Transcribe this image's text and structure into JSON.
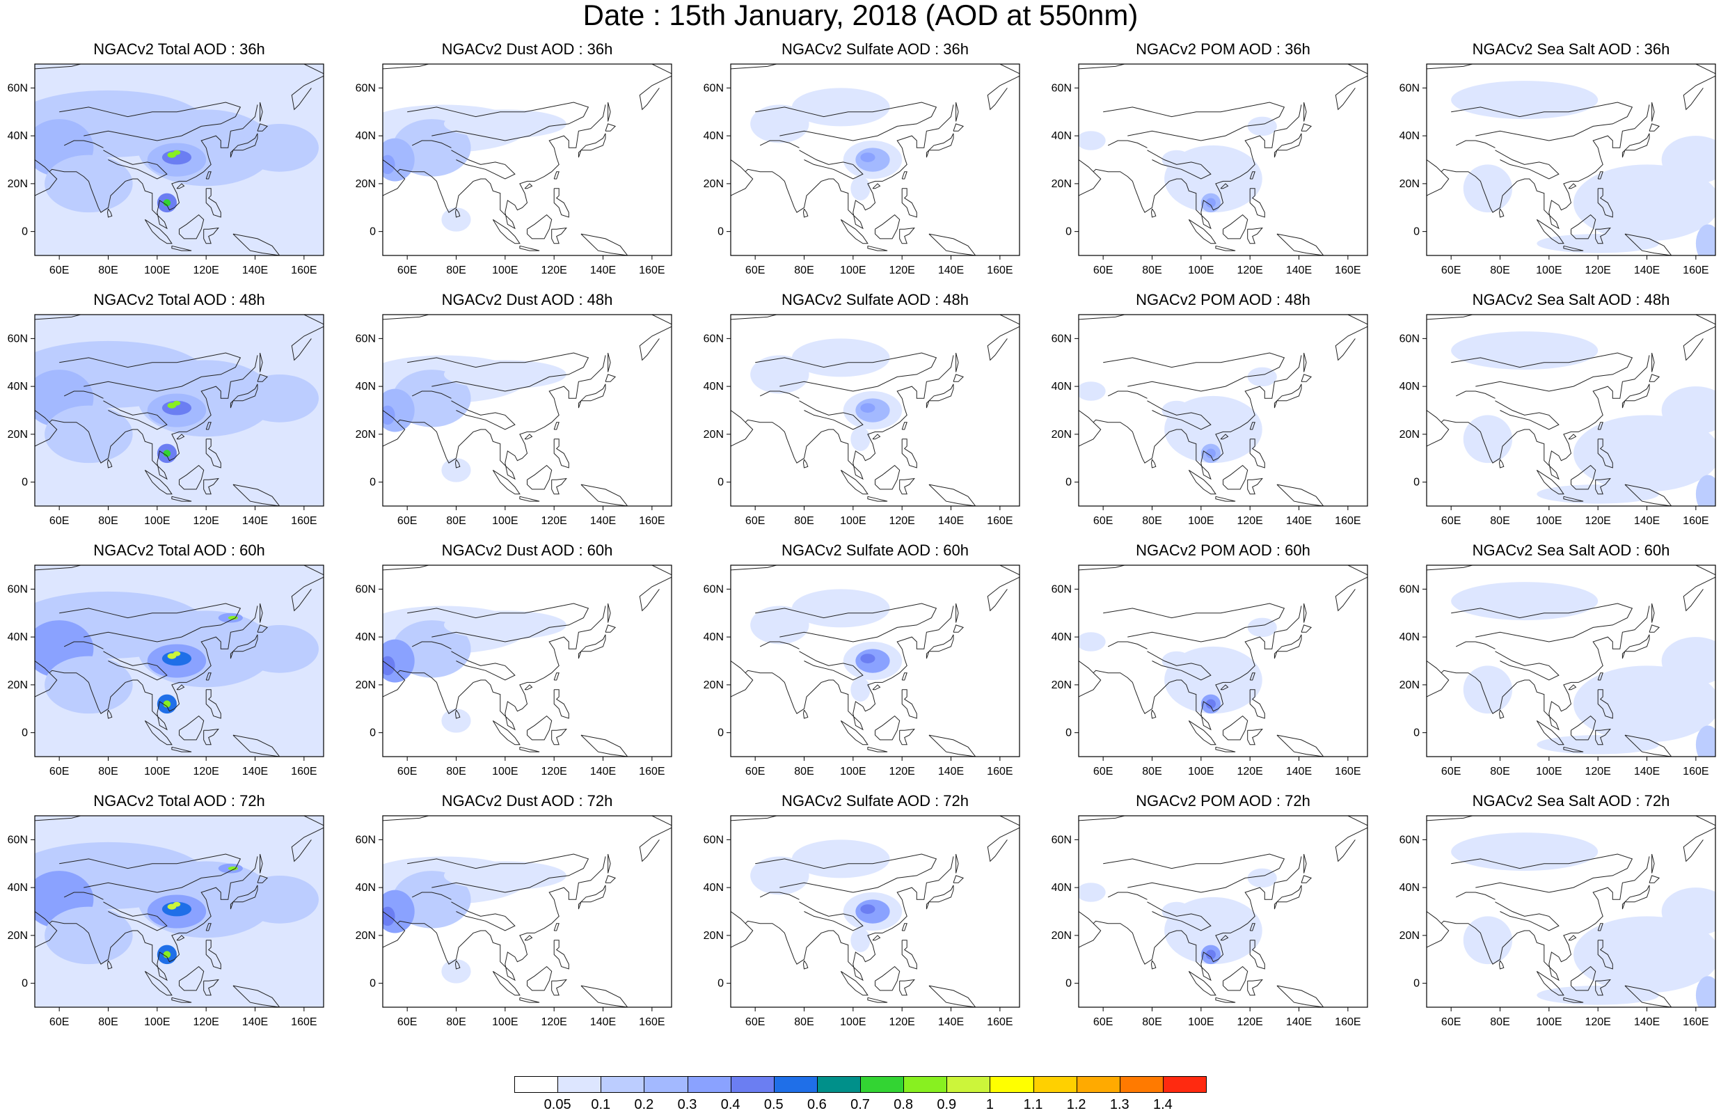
{
  "title": "Date : 15th January, 2018 (AOD at 550nm)",
  "map": {
    "lat_ticks": [
      "60N",
      "40N",
      "20N",
      "0"
    ],
    "lon_ticks": [
      "60E",
      "80E",
      "100E",
      "120E",
      "140E",
      "160E"
    ]
  },
  "panels": [
    {
      "title": "NGACv2 Total AOD : 36h",
      "species": "total",
      "hour": 36
    },
    {
      "title": "NGACv2 Dust AOD : 36h",
      "species": "dust",
      "hour": 36
    },
    {
      "title": "NGACv2 Sulfate AOD : 36h",
      "species": "sulfate",
      "hour": 36
    },
    {
      "title": "NGACv2 POM AOD : 36h",
      "species": "pom",
      "hour": 36
    },
    {
      "title": "NGACv2 Sea Salt AOD : 36h",
      "species": "seasalt",
      "hour": 36
    },
    {
      "title": "NGACv2 Total AOD : 48h",
      "species": "total",
      "hour": 48
    },
    {
      "title": "NGACv2 Dust AOD : 48h",
      "species": "dust",
      "hour": 48
    },
    {
      "title": "NGACv2 Sulfate AOD : 48h",
      "species": "sulfate",
      "hour": 48
    },
    {
      "title": "NGACv2 POM AOD : 48h",
      "species": "pom",
      "hour": 48
    },
    {
      "title": "NGACv2 Sea Salt AOD : 48h",
      "species": "seasalt",
      "hour": 48
    },
    {
      "title": "NGACv2 Total AOD : 60h",
      "species": "total",
      "hour": 60
    },
    {
      "title": "NGACv2 Dust AOD : 60h",
      "species": "dust",
      "hour": 60
    },
    {
      "title": "NGACv2 Sulfate AOD : 60h",
      "species": "sulfate",
      "hour": 60
    },
    {
      "title": "NGACv2 POM AOD : 60h",
      "species": "pom",
      "hour": 60
    },
    {
      "title": "NGACv2 Sea Salt AOD : 60h",
      "species": "seasalt",
      "hour": 60
    },
    {
      "title": "NGACv2 Total AOD : 72h",
      "species": "total",
      "hour": 72
    },
    {
      "title": "NGACv2 Dust AOD : 72h",
      "species": "dust",
      "hour": 72
    },
    {
      "title": "NGACv2 Sulfate AOD : 72h",
      "species": "sulfate",
      "hour": 72
    },
    {
      "title": "NGACv2 POM AOD : 72h",
      "species": "pom",
      "hour": 72
    },
    {
      "title": "NGACv2 Sea Salt  AOD : 72h",
      "species": "seasalt",
      "hour": 72
    }
  ],
  "colorbar": {
    "labels": [
      "0.05",
      "0.1",
      "0.2",
      "0.3",
      "0.4",
      "0.5",
      "0.6",
      "0.7",
      "0.8",
      "0.9",
      "1",
      "1.1",
      "1.2",
      "1.3",
      "1.4"
    ],
    "colors": [
      "#ffffff",
      "#dde6ff",
      "#bccdff",
      "#a3b9ff",
      "#8aa2ff",
      "#6b7ef2",
      "#1f6fe8",
      "#00908a",
      "#33d433",
      "#88f020",
      "#ccf53a",
      "#ffff00",
      "#ffd000",
      "#ffaa00",
      "#ff7a00",
      "#ff2a10"
    ]
  }
}
